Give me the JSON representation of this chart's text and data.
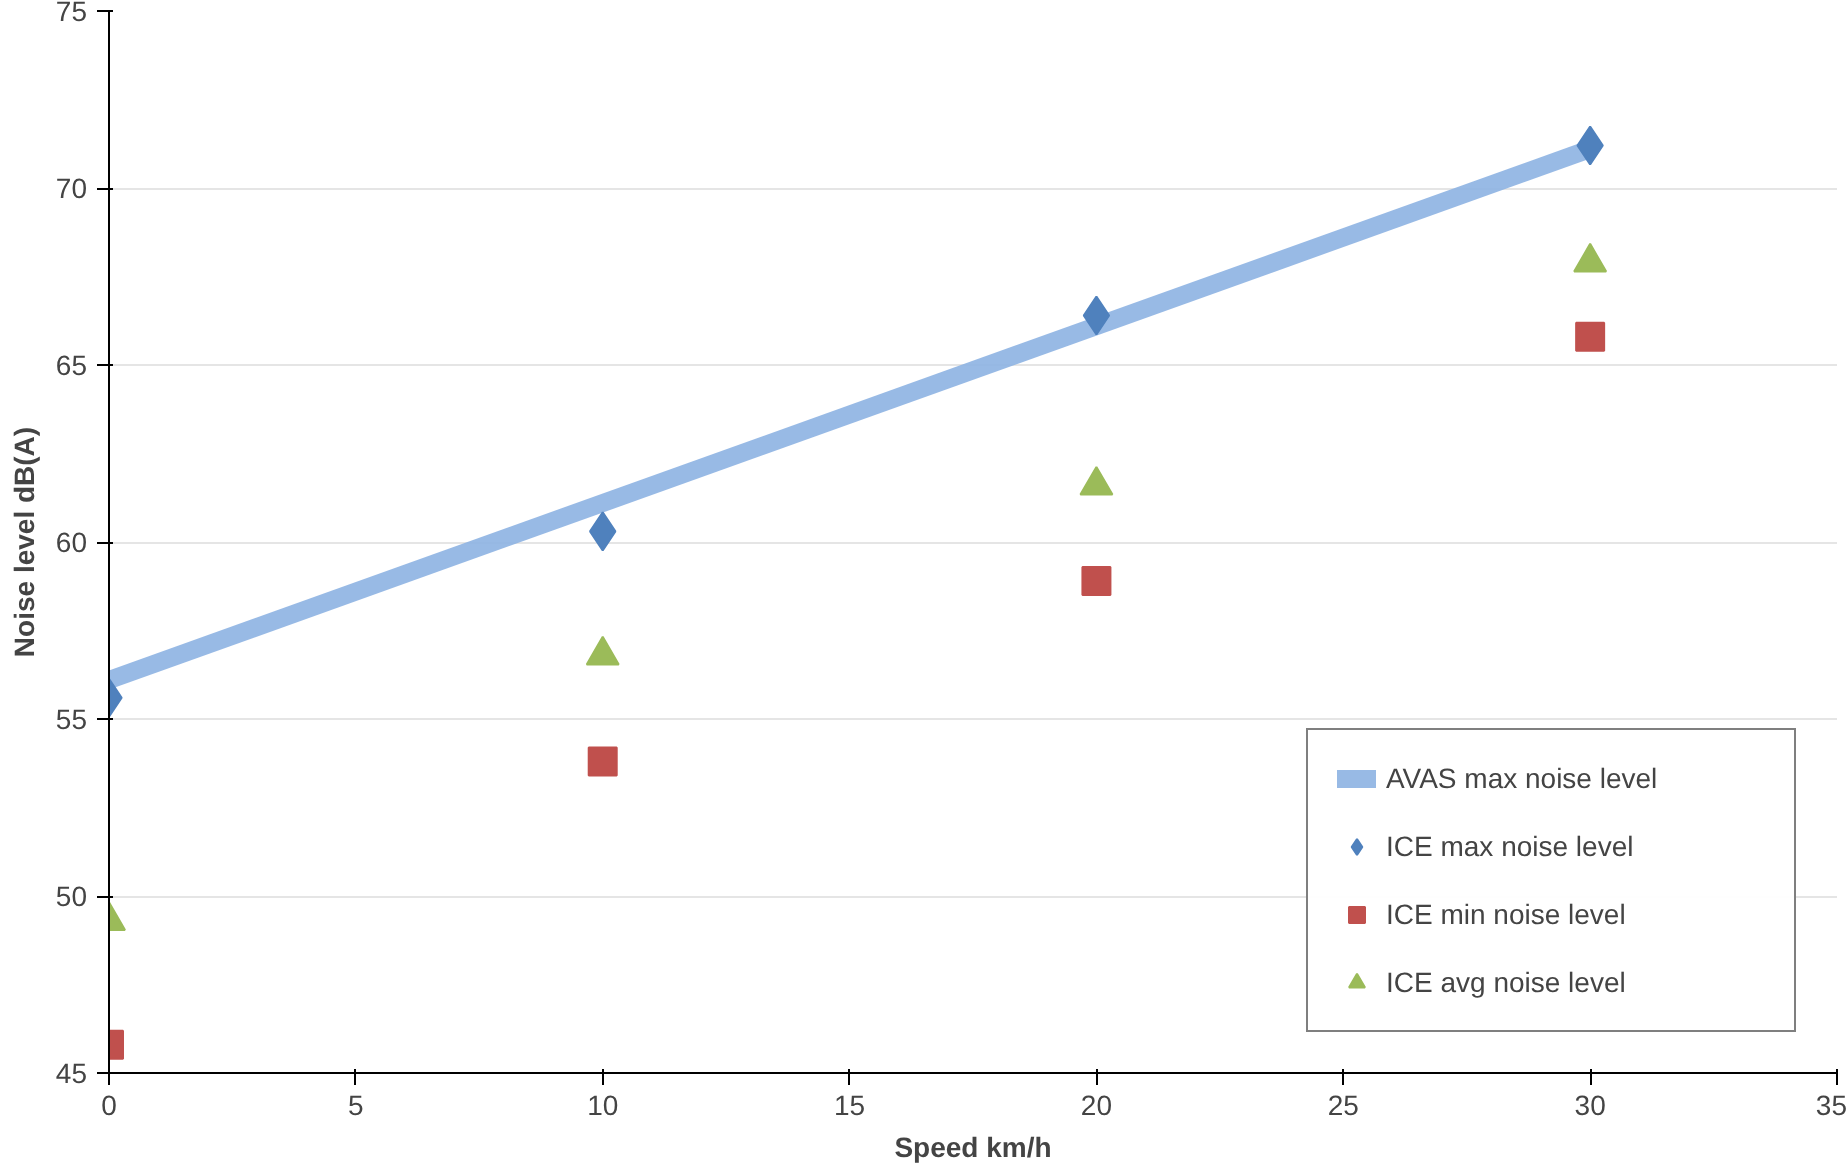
{
  "chart_data": {
    "type": "scatter",
    "xlabel": "Speed km/h",
    "ylabel": "Noise level dB(A)",
    "xlim": [
      0,
      35
    ],
    "xticks": [
      0,
      5,
      10,
      15,
      20,
      25,
      30,
      35
    ],
    "ylim": [
      45,
      75
    ],
    "yticks": [
      45,
      50,
      55,
      60,
      65,
      70,
      75
    ],
    "grid": "y",
    "legend": "bottom right",
    "series": [
      {
        "name": "AVAS max noise level",
        "type": "line",
        "color": "#8db3e2",
        "x": [
          0,
          30
        ],
        "values": [
          56.1,
          71.1
        ],
        "marker": "none"
      },
      {
        "name": "ICE max noise level",
        "color": "#4f81bd",
        "x": [
          0,
          10,
          20,
          30
        ],
        "values": [
          55.6,
          60.3,
          66.4,
          71.2
        ],
        "marker": "diamond"
      },
      {
        "name": "ICE min noise level",
        "color": "#c0504d",
        "x": [
          0,
          10,
          20,
          30
        ],
        "values": [
          45.8,
          53.8,
          58.9,
          65.8
        ],
        "marker": "square"
      },
      {
        "name": "ICE avg noise level",
        "color": "#9bbb59",
        "x": [
          0,
          10,
          20,
          30
        ],
        "values": [
          49.3,
          56.8,
          61.6,
          67.9
        ],
        "marker": "triangle"
      }
    ]
  }
}
